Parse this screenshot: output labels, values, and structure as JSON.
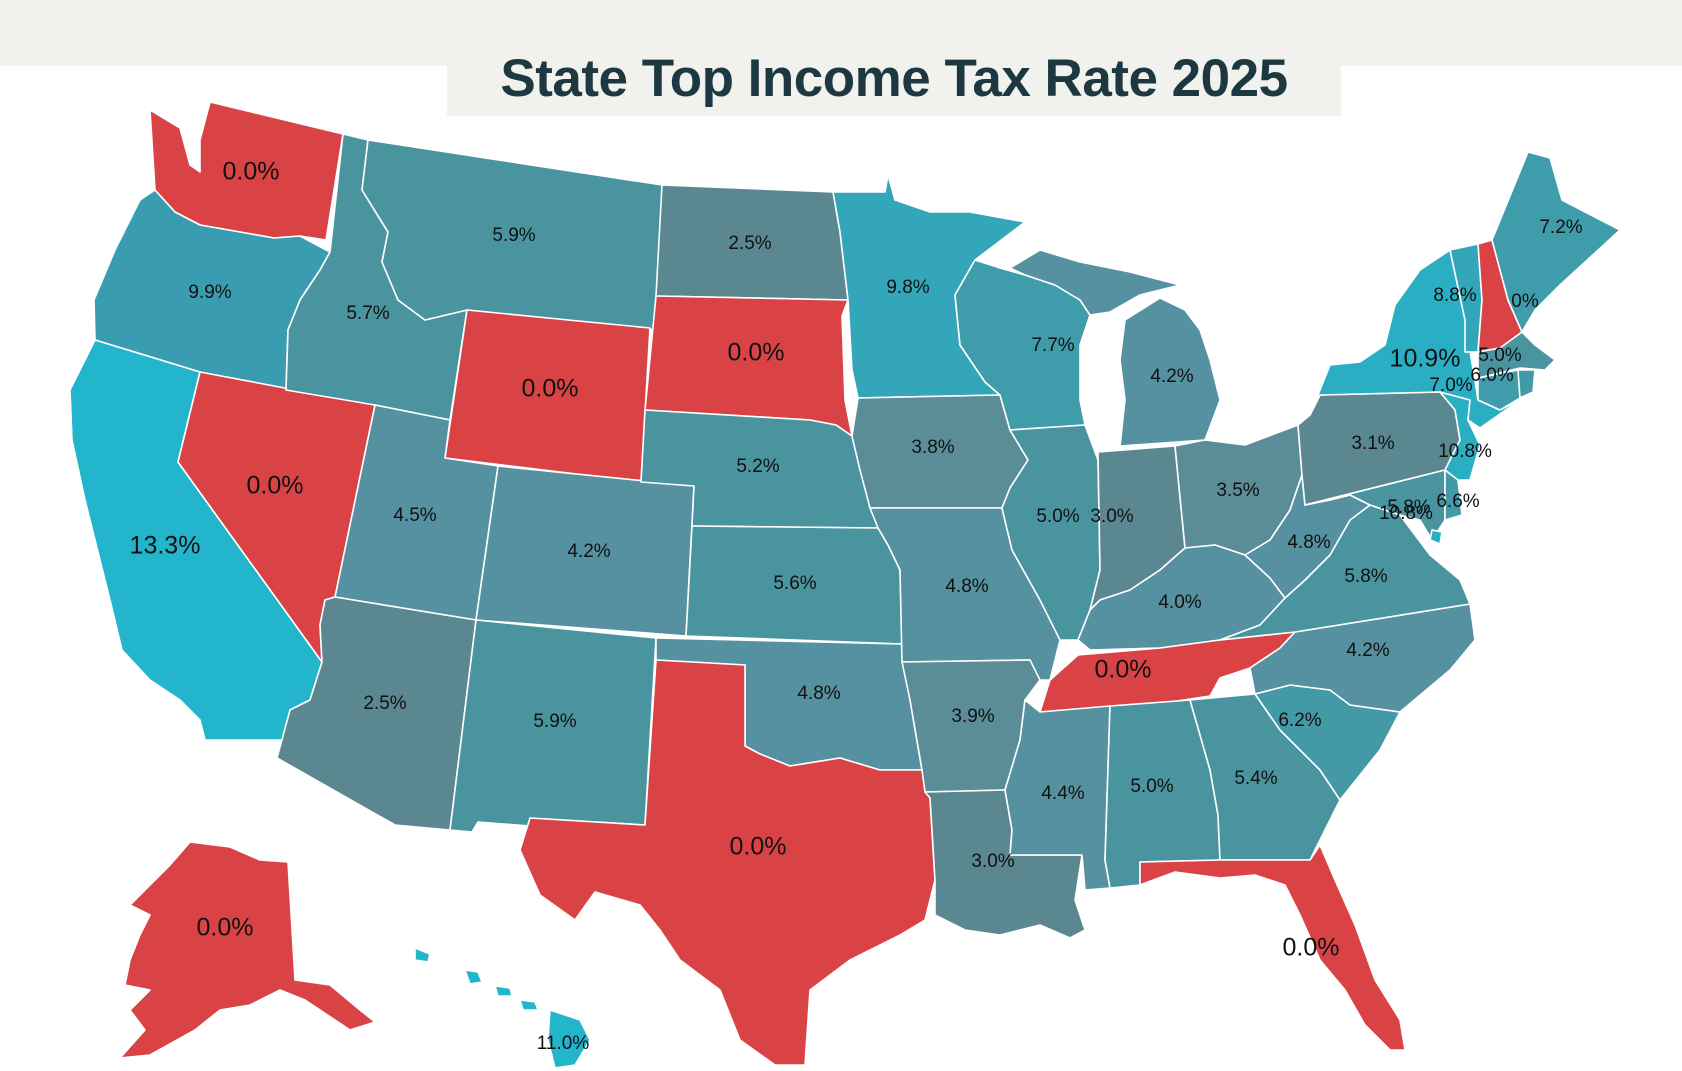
{
  "title": "State Top Income Tax Rate 2025",
  "colors": {
    "zero": "#d94346",
    "dark_teal": "#5a8790",
    "teal": "#4a94a0",
    "mid_teal": "#3a9cb0",
    "bright_cyan": "#22b5cb",
    "background_band": "#f1f2ee",
    "title_text": "#1d3840",
    "border": "#ffffff"
  },
  "states": {
    "WA": {
      "rate": "0.0%",
      "fill": "#d94346"
    },
    "OR": {
      "rate": "9.9%",
      "fill": "#3a9cb0"
    },
    "CA": {
      "rate": "13.3%",
      "fill": "#22b5cb"
    },
    "NV": {
      "rate": "0.0%",
      "fill": "#d94346"
    },
    "ID": {
      "rate": "5.7%",
      "fill": "#4a94a0"
    },
    "MT": {
      "rate": "5.9%",
      "fill": "#4a94a0"
    },
    "WY": {
      "rate": "0.0%",
      "fill": "#d94346"
    },
    "UT": {
      "rate": "4.5%",
      "fill": "#5591a0"
    },
    "AZ": {
      "rate": "2.5%",
      "fill": "#5a8790"
    },
    "CO": {
      "rate": "4.2%",
      "fill": "#5591a0"
    },
    "NM": {
      "rate": "5.9%",
      "fill": "#4a94a0"
    },
    "ND": {
      "rate": "2.5%",
      "fill": "#5a8790"
    },
    "SD": {
      "rate": "0.0%",
      "fill": "#d94346"
    },
    "NE": {
      "rate": "5.2%",
      "fill": "#4a94a0"
    },
    "KS": {
      "rate": "5.6%",
      "fill": "#4a94a0"
    },
    "OK": {
      "rate": "4.8%",
      "fill": "#5591a0"
    },
    "TX": {
      "rate": "0.0%",
      "fill": "#d94346"
    },
    "MN": {
      "rate": "9.8%",
      "fill": "#34a6ba"
    },
    "IA": {
      "rate": "3.8%",
      "fill": "#5a8d98"
    },
    "MO": {
      "rate": "4.8%",
      "fill": "#5591a0"
    },
    "AR": {
      "rate": "3.9%",
      "fill": "#5a8d98"
    },
    "LA": {
      "rate": "3.0%",
      "fill": "#5a8790"
    },
    "WI": {
      "rate": "7.7%",
      "fill": "#3f9cab"
    },
    "IL": {
      "rate": "5.0%",
      "fill": "#4a94a0"
    },
    "MI": {
      "rate": "4.2%",
      "fill": "#5591a0"
    },
    "IN": {
      "rate": "3.0%",
      "fill": "#5a8790"
    },
    "OH": {
      "rate": "3.5%",
      "fill": "#5a8d98"
    },
    "KY": {
      "rate": "4.0%",
      "fill": "#5591a0"
    },
    "TN": {
      "rate": "0.0%",
      "fill": "#d94346"
    },
    "MS": {
      "rate": "4.4%",
      "fill": "#5591a0"
    },
    "AL": {
      "rate": "5.0%",
      "fill": "#4a94a0"
    },
    "GA": {
      "rate": "5.4%",
      "fill": "#4a94a0"
    },
    "FL": {
      "rate": "0.0%",
      "fill": "#d94346"
    },
    "SC": {
      "rate": "6.2%",
      "fill": "#4499a6"
    },
    "NC": {
      "rate": "4.2%",
      "fill": "#5591a0"
    },
    "VA": {
      "rate": "5.8%",
      "fill": "#4a94a0"
    },
    "WV": {
      "rate": "4.8%",
      "fill": "#5591a0"
    },
    "PA": {
      "rate": "3.1%",
      "fill": "#5a8790"
    },
    "NY": {
      "rate": "10.9%",
      "fill": "#2aaec4"
    },
    "NJ": {
      "rate": "10.8%",
      "fill": "#2aaec4"
    },
    "DE": {
      "rate": "6.6%",
      "fill": "#4499a6"
    },
    "MD": {
      "rate": "5.8%",
      "fill": "#4a94a0"
    },
    "DC": {
      "rate": "10.8%",
      "fill": "#2aaec4"
    },
    "CT": {
      "rate": "7.0%",
      "fill": "#3f9cab"
    },
    "RI": {
      "rate": "6.0%",
      "fill": "#4499a6"
    },
    "MA": {
      "rate": "5.0%",
      "fill": "#4a94a0"
    },
    "VT": {
      "rate": "8.8%",
      "fill": "#34a6ba"
    },
    "NH": {
      "rate": "0%",
      "fill": "#d94346"
    },
    "ME": {
      "rate": "7.2%",
      "fill": "#3f9cab"
    },
    "AK": {
      "rate": "0.0%",
      "fill": "#d94346"
    },
    "HI": {
      "rate": "11.0%",
      "fill": "#22b5cb"
    }
  }
}
